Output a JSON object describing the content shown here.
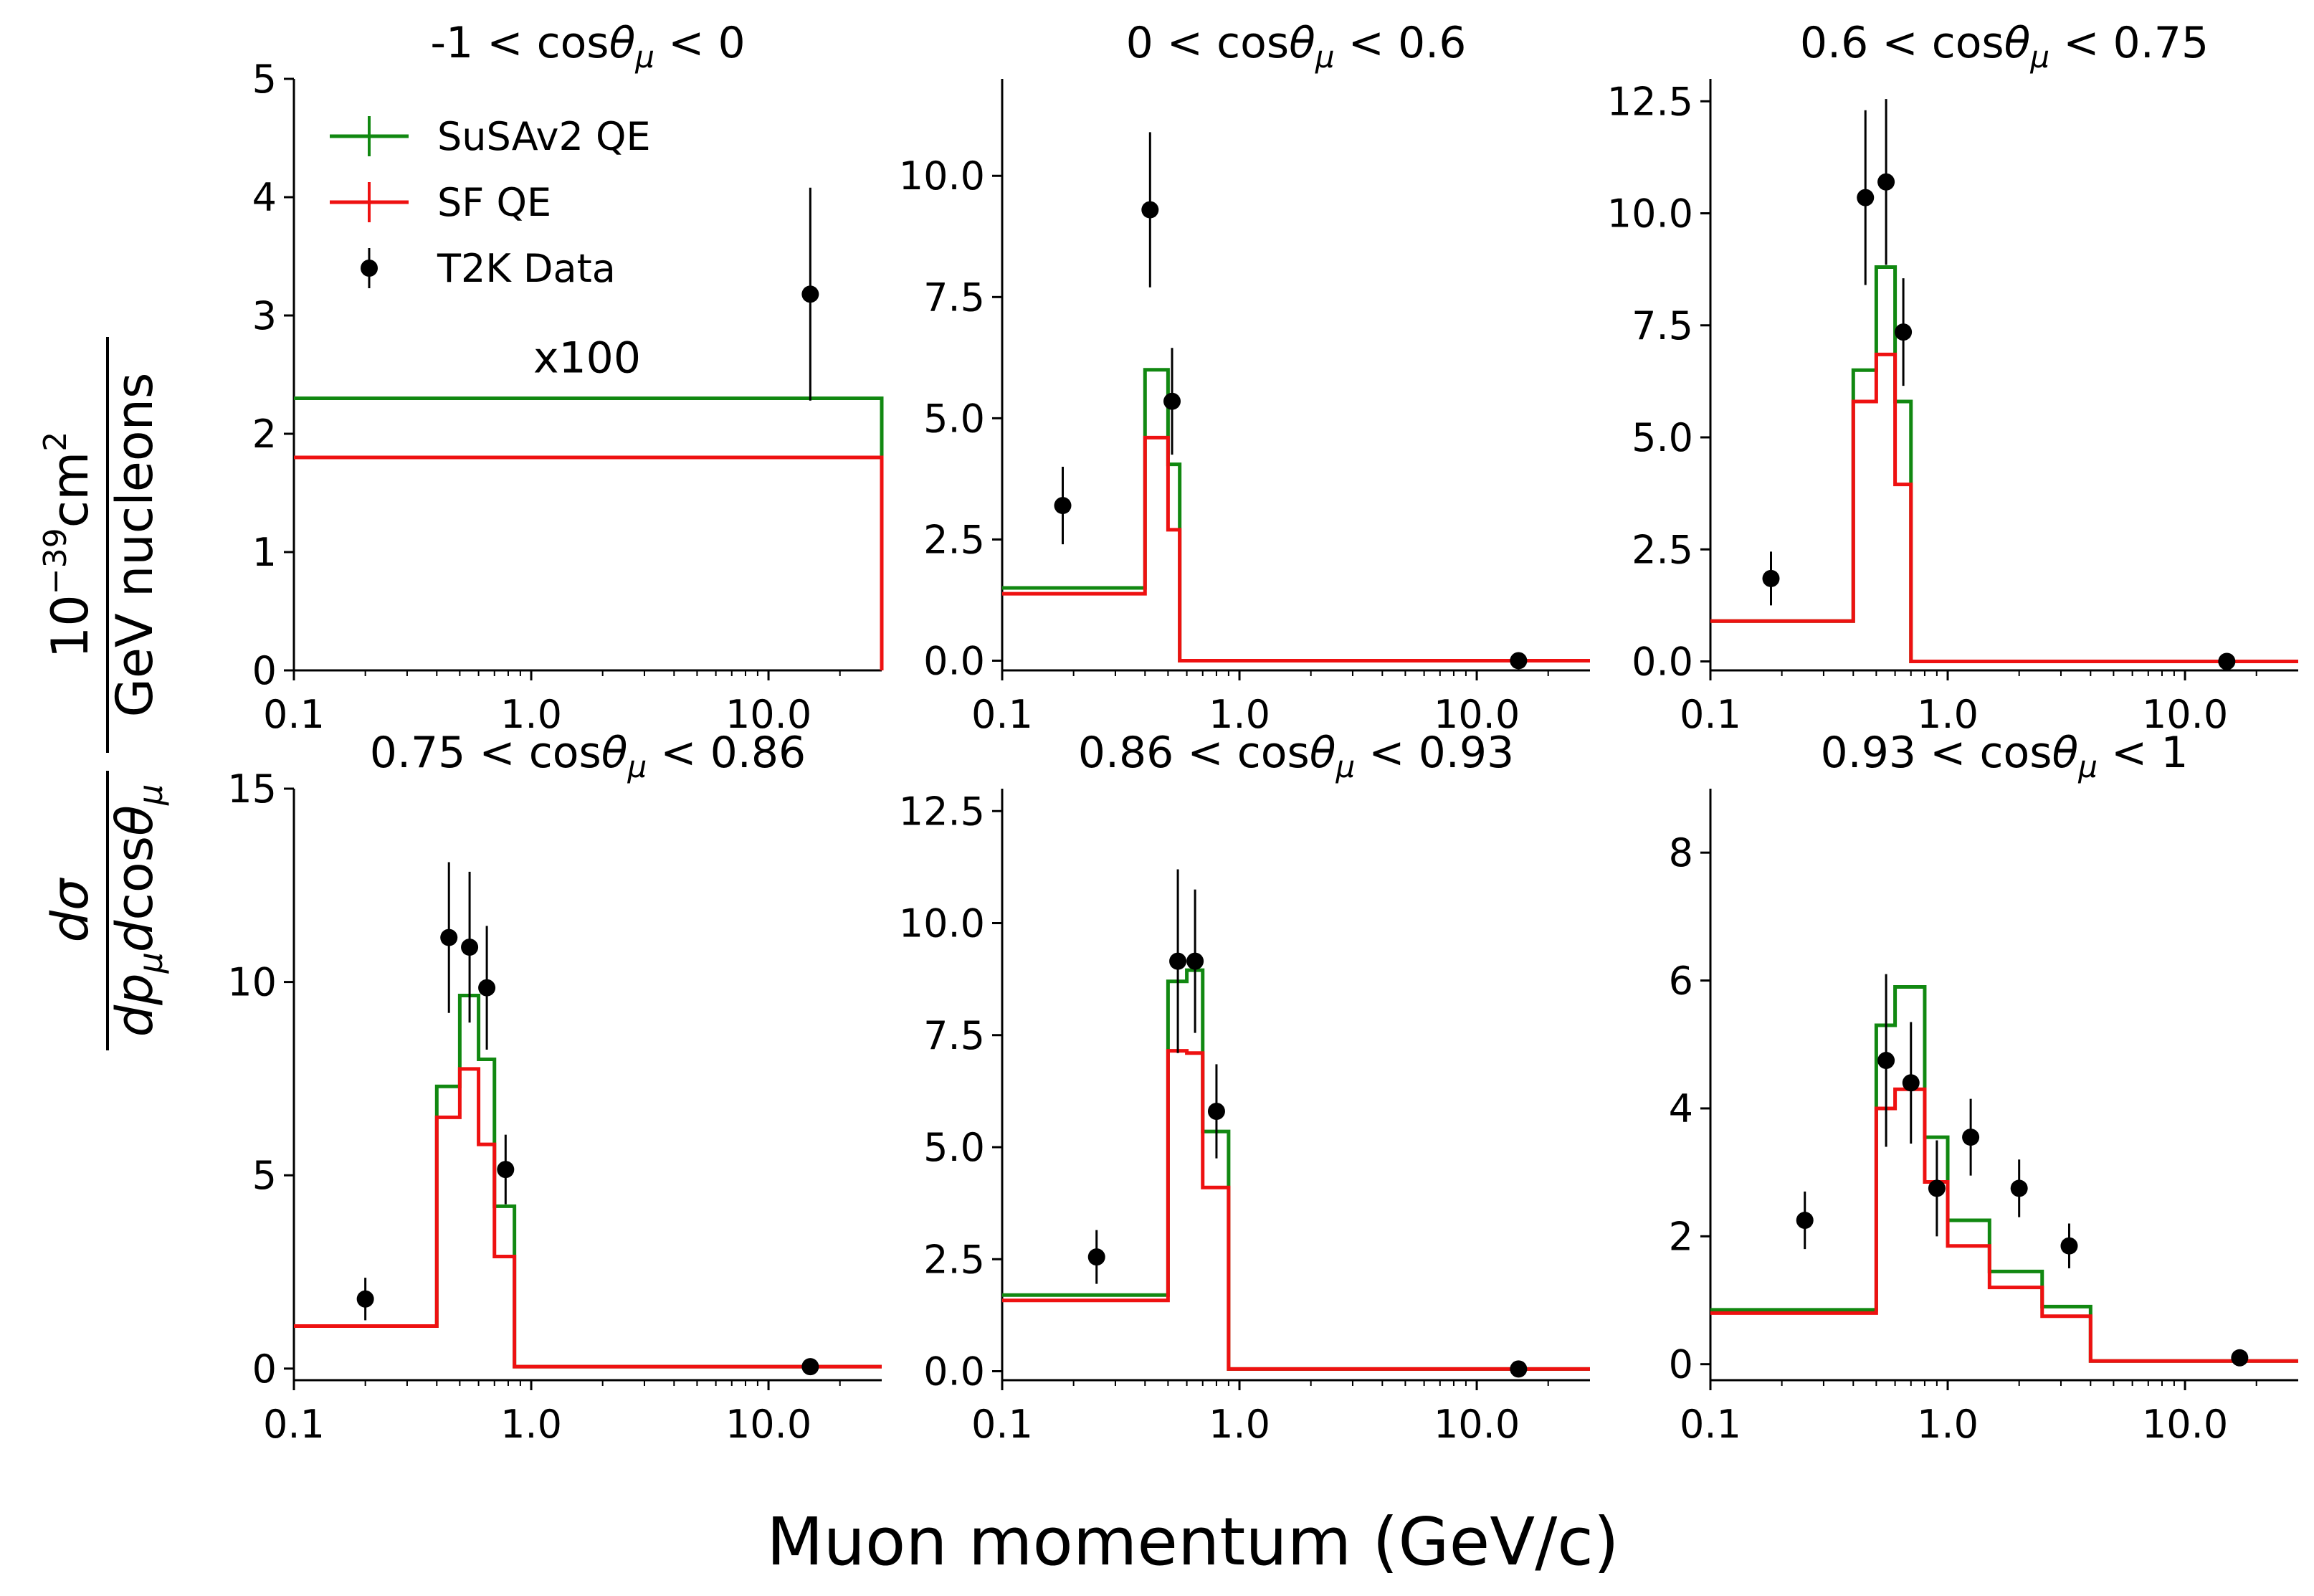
{
  "figure": {
    "xlabel": "Muon momentum (GeV/c)",
    "ylabel_numerator": "dσ",
    "ylabel_denominator": "dp_μ dcos θ_μ",
    "yunit_numerator": "10^-39 cm^2",
    "yunit_denominator": "GeV nucleons"
  },
  "legend": {
    "entries": [
      {
        "label": "SuSAv2 QE",
        "color": "#118811",
        "kind": "line"
      },
      {
        "label": "SF QE",
        "color": "#ee1111",
        "kind": "line"
      },
      {
        "label": "T2K Data",
        "color": "#000000",
        "kind": "errorbar"
      }
    ]
  },
  "chart_data": [
    {
      "type": "line",
      "title": "-1 < cosθ_μ < 0",
      "xscale": "log",
      "xlim": [
        0.1,
        30
      ],
      "ylim": [
        0,
        5
      ],
      "xticks": [
        0.1,
        1.0,
        10.0
      ],
      "xtick_labels": [
        "0.1",
        "1.0",
        "10.0"
      ],
      "yticks": [
        0,
        1,
        2,
        3,
        4,
        5
      ],
      "ytick_labels": [
        "0",
        "1",
        "2",
        "3",
        "4",
        "5"
      ],
      "annotation": "x100",
      "bin_edges": [
        0.1,
        30
      ],
      "series": [
        {
          "name": "SuSAv2 QE",
          "color": "#118811",
          "values": [
            2.3
          ]
        },
        {
          "name": "SF QE",
          "color": "#ee1111",
          "values": [
            1.8
          ]
        }
      ],
      "data_points": {
        "name": "T2K Data",
        "x": [
          15
        ],
        "y": [
          3.18
        ],
        "yerr": [
          0.9
        ]
      }
    },
    {
      "type": "line",
      "title": "0 < cosθ_μ < 0.6",
      "xscale": "log",
      "xlim": [
        0.1,
        30
      ],
      "ylim": [
        -0.2,
        12
      ],
      "xticks": [
        0.1,
        1.0,
        10.0
      ],
      "xtick_labels": [
        "0.1",
        "1.0",
        "10.0"
      ],
      "yticks": [
        0,
        2.5,
        5,
        7.5,
        10
      ],
      "ytick_labels": [
        "0.0",
        "2.5",
        "5.0",
        "7.5",
        "10.0"
      ],
      "bin_edges": [
        0.1,
        0.4,
        0.5,
        0.56,
        30
      ],
      "series": [
        {
          "name": "SuSAv2 QE",
          "color": "#118811",
          "values": [
            1.5,
            6.0,
            4.05,
            0.0
          ]
        },
        {
          "name": "SF QE",
          "color": "#ee1111",
          "values": [
            1.38,
            4.6,
            2.7,
            0.0
          ]
        }
      ],
      "data_points": {
        "name": "T2K Data",
        "x": [
          0.18,
          0.42,
          0.52,
          15
        ],
        "y": [
          3.2,
          9.3,
          5.35,
          0.0
        ],
        "yerr": [
          0.8,
          1.6,
          1.1,
          0.05
        ]
      }
    },
    {
      "type": "line",
      "title": "0.6 < cosθ_μ < 0.75",
      "xscale": "log",
      "xlim": [
        0.1,
        30
      ],
      "ylim": [
        -0.2,
        13
      ],
      "xticks": [
        0.1,
        1.0,
        10.0
      ],
      "xtick_labels": [
        "0.1",
        "1.0",
        "10.0"
      ],
      "yticks": [
        0,
        2.5,
        5,
        7.5,
        10,
        12.5
      ],
      "ytick_labels": [
        "0.0",
        "2.5",
        "5.0",
        "7.5",
        "10.0",
        "12.5"
      ],
      "bin_edges": [
        0.1,
        0.4,
        0.5,
        0.6,
        0.7,
        30
      ],
      "series": [
        {
          "name": "SuSAv2 QE",
          "color": "#118811",
          "values": [
            0.9,
            6.5,
            8.8,
            5.8,
            0.0
          ]
        },
        {
          "name": "SF QE",
          "color": "#ee1111",
          "values": [
            0.9,
            5.8,
            6.85,
            3.95,
            0.0
          ]
        }
      ],
      "data_points": {
        "name": "T2K Data",
        "x": [
          0.18,
          0.45,
          0.55,
          0.65,
          15
        ],
        "y": [
          1.85,
          10.35,
          10.7,
          7.35,
          0.0
        ],
        "yerr": [
          0.6,
          1.95,
          1.85,
          1.2,
          0.05
        ]
      }
    },
    {
      "type": "line",
      "title": "0.75 < cosθ_μ < 0.86",
      "xscale": "log",
      "xlim": [
        0.1,
        30
      ],
      "ylim": [
        -0.3,
        15
      ],
      "xticks": [
        0.1,
        1.0,
        10.0
      ],
      "xtick_labels": [
        "0.1",
        "1.0",
        "10.0"
      ],
      "yticks": [
        0,
        5,
        10,
        15
      ],
      "ytick_labels": [
        "0",
        "5",
        "10",
        "15"
      ],
      "bin_edges": [
        0.1,
        0.4,
        0.5,
        0.6,
        0.7,
        0.85,
        30
      ],
      "series": [
        {
          "name": "SuSAv2 QE",
          "color": "#118811",
          "values": [
            1.1,
            7.3,
            9.65,
            8.0,
            4.2,
            0.05
          ]
        },
        {
          "name": "SF QE",
          "color": "#ee1111",
          "values": [
            1.1,
            6.5,
            7.75,
            5.8,
            2.9,
            0.05
          ]
        }
      ],
      "data_points": {
        "name": "T2K Data",
        "x": [
          0.2,
          0.45,
          0.55,
          0.65,
          0.78,
          15
        ],
        "y": [
          1.8,
          11.15,
          10.9,
          9.85,
          5.15,
          0.05
        ],
        "yerr": [
          0.55,
          1.95,
          1.95,
          1.6,
          0.9,
          0.05
        ]
      }
    },
    {
      "type": "line",
      "title": "0.86 < cosθ_μ < 0.93",
      "xscale": "log",
      "xlim": [
        0.1,
        30
      ],
      "ylim": [
        -0.2,
        13
      ],
      "xticks": [
        0.1,
        1.0,
        10.0
      ],
      "xtick_labels": [
        "0.1",
        "1.0",
        "10.0"
      ],
      "yticks": [
        0,
        2.5,
        5,
        7.5,
        10,
        12.5
      ],
      "ytick_labels": [
        "0.0",
        "2.5",
        "5.0",
        "7.5",
        "10.0",
        "12.5"
      ],
      "bin_edges": [
        0.1,
        0.5,
        0.6,
        0.7,
        0.9,
        30
      ],
      "series": [
        {
          "name": "SuSAv2 QE",
          "color": "#118811",
          "values": [
            1.7,
            8.7,
            8.95,
            5.35,
            0.05
          ]
        },
        {
          "name": "SF QE",
          "color": "#ee1111",
          "values": [
            1.58,
            7.15,
            7.1,
            4.1,
            0.05
          ]
        }
      ],
      "data_points": {
        "name": "T2K Data",
        "x": [
          0.25,
          0.55,
          0.65,
          0.8,
          15
        ],
        "y": [
          2.55,
          9.15,
          9.15,
          5.8,
          0.05
        ],
        "yerr": [
          0.6,
          2.05,
          1.6,
          1.05,
          0.05
        ]
      }
    },
    {
      "type": "line",
      "title": "0.93 < cosθ_μ < 1",
      "xscale": "log",
      "xlim": [
        0.1,
        30
      ],
      "ylim": [
        -0.25,
        9
      ],
      "xticks": [
        0.1,
        1.0,
        10.0
      ],
      "xtick_labels": [
        "0.1",
        "1.0",
        "10.0"
      ],
      "yticks": [
        0,
        2,
        4,
        6,
        8
      ],
      "ytick_labels": [
        "0",
        "2",
        "4",
        "6",
        "8"
      ],
      "bin_edges": [
        0.1,
        0.5,
        0.6,
        0.8,
        1.0,
        1.5,
        2.5,
        4.0,
        30
      ],
      "series": [
        {
          "name": "SuSAv2 QE",
          "color": "#118811",
          "values": [
            0.85,
            5.3,
            5.9,
            3.55,
            2.25,
            1.45,
            0.9,
            0.05
          ]
        },
        {
          "name": "SF QE",
          "color": "#ee1111",
          "values": [
            0.8,
            4.0,
            4.3,
            2.85,
            1.85,
            1.2,
            0.75,
            0.05
          ]
        }
      ],
      "data_points": {
        "name": "T2K Data",
        "x": [
          0.25,
          0.55,
          0.7,
          0.9,
          1.25,
          2.0,
          3.25,
          17
        ],
        "y": [
          2.25,
          4.75,
          4.4,
          2.75,
          3.55,
          2.75,
          1.85,
          0.1
        ],
        "yerr": [
          0.45,
          1.35,
          0.95,
          0.75,
          0.6,
          0.45,
          0.35,
          0.05
        ]
      }
    }
  ]
}
